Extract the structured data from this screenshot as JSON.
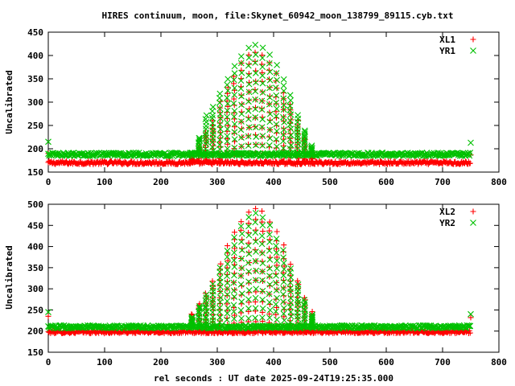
{
  "chart_data": [
    {
      "type": "scatter",
      "title": "HIRES continuum, moon, file:Skynet_60942_moon_138799_89115.cyb.txt",
      "xlabel": "",
      "ylabel": "Uncalibrated",
      "xlim": [
        0,
        800
      ],
      "ylim": [
        150,
        450
      ],
      "xticks": [
        "0",
        "100",
        "200",
        "300",
        "400",
        "500",
        "600",
        "700",
        "800"
      ],
      "yticks": [
        "150",
        "200",
        "250",
        "300",
        "350",
        "400",
        "450"
      ],
      "legend_position": "top-right",
      "series": [
        {
          "name": "XL1",
          "color": "#ff0000",
          "marker": "plus",
          "baseline": 170,
          "noise": 3.5,
          "pulses": [
            [
              255,
              180
            ],
            [
              268,
              205
            ],
            [
              280,
              235
            ],
            [
              292,
              260
            ],
            [
              305,
              300
            ],
            [
              318,
              330
            ],
            [
              330,
              355
            ],
            [
              343,
              385
            ],
            [
              356,
              400
            ],
            [
              368,
              405
            ],
            [
              380,
              400
            ],
            [
              393,
              385
            ],
            [
              405,
              360
            ],
            [
              418,
              320
            ],
            [
              430,
              295
            ],
            [
              443,
              260
            ],
            [
              455,
              225
            ],
            [
              468,
              195
            ]
          ],
          "ends": [
            [
              0,
              190
            ],
            [
              750,
              187
            ]
          ]
        },
        {
          "name": "YR1",
          "color": "#00c000",
          "marker": "cross",
          "baseline": 188,
          "noise": 3.5,
          "pulses": [
            [
              255,
              190
            ],
            [
              268,
              225
            ],
            [
              280,
              270
            ],
            [
              292,
              290
            ],
            [
              305,
              320
            ],
            [
              318,
              350
            ],
            [
              330,
              378
            ],
            [
              343,
              400
            ],
            [
              356,
              415
            ],
            [
              368,
              422
            ],
            [
              380,
              415
            ],
            [
              393,
              400
            ],
            [
              405,
              380
            ],
            [
              418,
              350
            ],
            [
              430,
              315
            ],
            [
              443,
              270
            ],
            [
              455,
              240
            ],
            [
              468,
              205
            ]
          ],
          "ends": [
            [
              0,
              215
            ],
            [
              750,
              213
            ]
          ]
        }
      ]
    },
    {
      "type": "scatter",
      "title": "",
      "xlabel": "rel seconds : UT date 2025-09-24T19:25:35.000",
      "ylabel": "Uncalibrated",
      "xlim": [
        0,
        800
      ],
      "ylim": [
        150,
        500
      ],
      "xticks": [
        "0",
        "100",
        "200",
        "300",
        "400",
        "500",
        "600",
        "700",
        "800"
      ],
      "yticks": [
        "150",
        "200",
        "250",
        "300",
        "350",
        "400",
        "450",
        "500"
      ],
      "legend_position": "top-right",
      "series": [
        {
          "name": "XL2",
          "color": "#ff0000",
          "marker": "plus",
          "baseline": 198,
          "noise": 3.5,
          "pulses": [
            [
              255,
              240
            ],
            [
              268,
              265
            ],
            [
              280,
              290
            ],
            [
              292,
              320
            ],
            [
              305,
              360
            ],
            [
              318,
              400
            ],
            [
              330,
              435
            ],
            [
              343,
              460
            ],
            [
              356,
              480
            ],
            [
              368,
              488
            ],
            [
              380,
              482
            ],
            [
              393,
              460
            ],
            [
              405,
              435
            ],
            [
              418,
              405
            ],
            [
              430,
              360
            ],
            [
              443,
              320
            ],
            [
              455,
              280
            ],
            [
              468,
              245
            ]
          ],
          "ends": [
            [
              0,
              235
            ],
            [
              750,
              232
            ]
          ]
        },
        {
          "name": "YR2",
          "color": "#00c000",
          "marker": "cross",
          "baseline": 210,
          "noise": 3.5,
          "pulses": [
            [
              255,
              235
            ],
            [
              268,
              260
            ],
            [
              280,
              285
            ],
            [
              292,
              310
            ],
            [
              305,
              350
            ],
            [
              318,
              390
            ],
            [
              330,
              420
            ],
            [
              343,
              450
            ],
            [
              356,
              468
            ],
            [
              368,
              478
            ],
            [
              380,
              470
            ],
            [
              393,
              450
            ],
            [
              405,
              420
            ],
            [
              418,
              390
            ],
            [
              430,
              350
            ],
            [
              443,
              310
            ],
            [
              455,
              275
            ],
            [
              468,
              240
            ]
          ],
          "ends": [
            [
              0,
              245
            ],
            [
              750,
              240
            ]
          ]
        }
      ]
    }
  ]
}
